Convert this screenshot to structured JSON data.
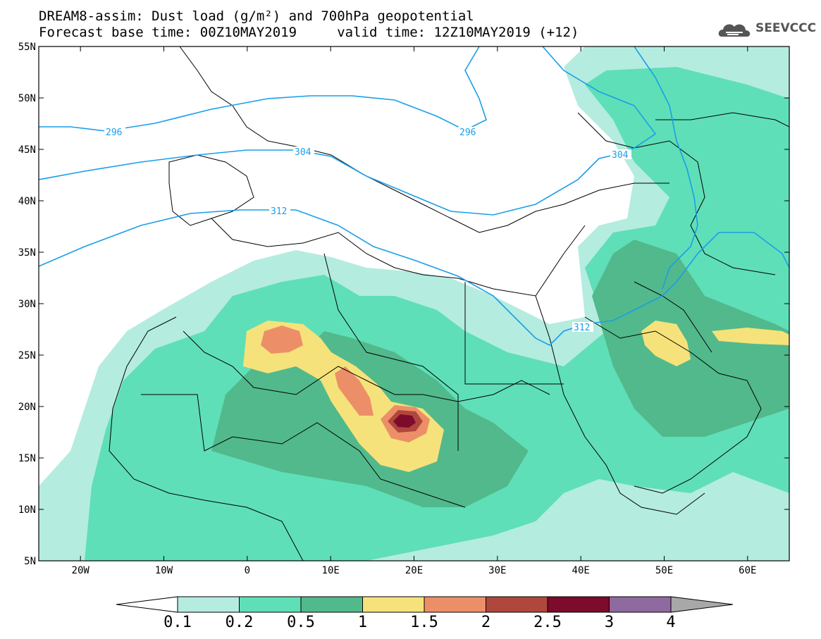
{
  "title": {
    "line1": "DREAM8-assim: Dust load (g/m²) and 700hPa geopotential",
    "line2": "Forecast base time: 00Z10MAY2019     valid time: 12Z10MAY2019 (+12)"
  },
  "logo": {
    "icon": "cloud-logo-icon",
    "text": "SEEVCCC"
  },
  "axes": {
    "lat_labels": [
      "55N",
      "50N",
      "45N",
      "40N",
      "35N",
      "30N",
      "25N",
      "20N",
      "15N",
      "10N",
      "5N"
    ],
    "lat_values": [
      55,
      50,
      45,
      40,
      35,
      30,
      25,
      20,
      15,
      10,
      5
    ],
    "lon_labels": [
      "20W",
      "10W",
      "0",
      "10E",
      "20E",
      "30E",
      "40E",
      "50E",
      "60E"
    ],
    "lon_values": [
      -20,
      -10,
      0,
      10,
      20,
      30,
      40,
      50,
      60
    ],
    "lon_range": [
      -25,
      65
    ],
    "lat_range": [
      5,
      55
    ]
  },
  "contours": [
    {
      "label": "296",
      "level": 296
    },
    {
      "label": "304",
      "level": 304
    },
    {
      "label": "312",
      "level": 312
    }
  ],
  "colorbar": {
    "labels": [
      "0.1",
      "0.2",
      "0.5",
      "1",
      "1.5",
      "2",
      "2.5",
      "3",
      "4"
    ],
    "colors": [
      "#b4ece0",
      "#5fdfb7",
      "#52b98c",
      "#f6e27a",
      "#ec8f69",
      "#b0473d",
      "#7d0b2b",
      "#8f6aa0"
    ],
    "under_color": "#ffffff",
    "over_color": "#a8a8a8"
  },
  "dust_colors": {
    "l1": "#b4ece0",
    "l2": "#5fdfb7",
    "l3": "#52b98c",
    "l4": "#f6e27a",
    "l5": "#ec8f69",
    "l6": "#b0473d",
    "l7": "#7d0b2b"
  },
  "contour_color": "#1a9ee8"
}
